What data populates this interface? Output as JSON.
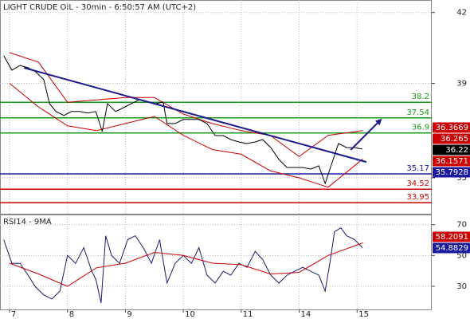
{
  "chart_data": [
    {
      "type": "line",
      "title": "LIGHT CRUDE OIL - 30min - 6:50:57 AM (UTC+2)",
      "xlim": [
        -0.165,
        7.29
      ],
      "ylim": [
        33.48,
        42.53
      ],
      "yticks": [
        35,
        39,
        42
      ],
      "xticks": [
        {
          "value": 0,
          "label": "7"
        },
        {
          "value": 1,
          "label": "8"
        },
        {
          "value": 2,
          "label": "9"
        },
        {
          "value": 3,
          "label": "10"
        },
        {
          "value": 4,
          "label": "11"
        },
        {
          "value": 5,
          "label": "14"
        },
        {
          "value": 6,
          "label": "15"
        }
      ],
      "grid": true,
      "series": [
        {
          "color": "#cc0000",
          "x": [
            0,
            0.5,
            1,
            1.5,
            2,
            2.5,
            3,
            3.5,
            4,
            4.5,
            5,
            5.5,
            6.1
          ],
          "values": [
            40.3,
            39.9,
            38.2,
            38.3,
            38.4,
            38.4,
            37.7,
            37.3,
            37.0,
            36.8,
            35.9,
            36.8,
            37.0
          ]
        },
        {
          "color": "#cc0000",
          "x": [
            0,
            0.5,
            1,
            1.5,
            2,
            2.5,
            3,
            3.5,
            4,
            4.5,
            5,
            5.5,
            6.1
          ],
          "values": [
            39.0,
            38.0,
            37.2,
            37.0,
            37.3,
            37.6,
            36.8,
            36.2,
            36.0,
            35.3,
            35.0,
            34.6,
            35.8
          ]
        },
        {
          "color": "#000000",
          "x": [
            -0.1,
            0.04,
            0.18,
            0.32,
            0.45,
            0.59,
            0.69,
            0.8,
            0.94,
            1.07,
            1.21,
            1.35,
            1.49,
            1.6,
            1.69,
            1.83,
            1.97,
            2.1,
            2.24,
            2.38,
            2.52,
            2.65,
            2.72,
            2.86,
            3.0,
            3.14,
            3.27,
            3.41,
            3.55,
            3.69,
            3.82,
            3.96,
            4.1,
            4.24,
            4.37,
            4.51,
            4.65,
            4.79,
            4.92,
            5.06,
            5.2,
            5.34,
            5.45,
            5.54,
            5.61,
            5.68,
            5.82,
            5.96,
            6.09
          ],
          "values": [
            40.17,
            39.56,
            39.76,
            39.66,
            39.49,
            39.16,
            38.14,
            37.81,
            37.64,
            37.81,
            37.81,
            37.74,
            37.81,
            36.96,
            38.14,
            37.81,
            37.97,
            38.14,
            38.31,
            38.21,
            38.14,
            38.21,
            37.3,
            37.3,
            37.47,
            37.47,
            37.47,
            37.3,
            36.79,
            36.79,
            36.62,
            36.52,
            36.45,
            36.52,
            36.62,
            36.28,
            35.78,
            35.44,
            35.44,
            35.44,
            35.37,
            35.51,
            34.76,
            35.44,
            35.95,
            36.45,
            36.28,
            36.28,
            36.22
          ]
        }
      ],
      "trendlines": [
        {
          "color": "#1a1a8c",
          "x": [
            0.25,
            6.16
          ],
          "values": [
            39.66,
            35.67
          ],
          "arrow": false
        },
        {
          "color": "#1a1a8c",
          "x": [
            5.89,
            6.41
          ],
          "values": [
            36.18,
            37.46
          ],
          "arrow": true
        }
      ],
      "levels": [
        {
          "value": 38.2,
          "color": "#1a9a1a"
        },
        {
          "value": 37.54,
          "color": "#1a9a1a"
        },
        {
          "value": 36.9,
          "color": "#1a9a1a"
        },
        {
          "value": 35.17,
          "color": "#1a1aa0"
        },
        {
          "value": 34.52,
          "color": "#cc0000"
        },
        {
          "value": 33.95,
          "color": "#cc0000"
        }
      ],
      "markers": [
        {
          "value": 36.3669,
          "color": "#cc0000"
        },
        {
          "value": 36.265,
          "color": "#cc0000"
        },
        {
          "value": 36.22,
          "color": "#000000"
        },
        {
          "value": 36.1571,
          "color": "#cc0000"
        },
        {
          "value": 35.7928,
          "color": "#1a1aa0"
        }
      ]
    },
    {
      "type": "line",
      "title": "RSI14 - 9MA",
      "xlim": [
        -0.165,
        7.29
      ],
      "ylim": [
        15,
        75
      ],
      "yticks": [
        30,
        50,
        70
      ],
      "xticks": [
        {
          "value": 0,
          "label": "7"
        },
        {
          "value": 1,
          "label": "8"
        },
        {
          "value": 2,
          "label": "9"
        },
        {
          "value": 3,
          "label": "10"
        },
        {
          "value": 4,
          "label": "11"
        },
        {
          "value": 5,
          "label": "14"
        },
        {
          "value": 6,
          "label": "15"
        }
      ],
      "grid": true,
      "series": [
        {
          "color": "#1a1a6e",
          "x": [
            -0.1,
            0.04,
            0.18,
            0.32,
            0.45,
            0.59,
            0.73,
            0.87,
            1.0,
            1.14,
            1.28,
            1.42,
            1.49,
            1.58,
            1.66,
            1.76,
            1.9,
            2.04,
            2.17,
            2.31,
            2.45,
            2.59,
            2.72,
            2.86,
            3.0,
            3.14,
            3.27,
            3.41,
            3.55,
            3.69,
            3.82,
            3.96,
            4.1,
            4.24,
            4.37,
            4.51,
            4.65,
            4.79,
            4.92,
            5.06,
            5.2,
            5.34,
            5.45,
            5.54,
            5.61,
            5.72,
            5.82,
            5.96,
            6.09
          ],
          "values": [
            60.26,
            44.9,
            44.9,
            37.2,
            29.5,
            24.4,
            21.8,
            26.9,
            50.0,
            44.9,
            55.1,
            39.7,
            34.6,
            19.2,
            62.8,
            50.0,
            44.9,
            60.26,
            62.8,
            55.1,
            44.9,
            60.26,
            32.1,
            44.9,
            50.0,
            44.9,
            55.1,
            37.2,
            32.1,
            39.7,
            37.2,
            44.9,
            42.3,
            52.6,
            47.4,
            37.2,
            32.1,
            37.2,
            39.7,
            42.3,
            39.7,
            37.2,
            26.9,
            47.4,
            65.4,
            67.9,
            62.8,
            60.26,
            55.1
          ]
        },
        {
          "color": "#cc0000",
          "x": [
            0,
            0.5,
            1,
            1.5,
            2,
            2.5,
            3,
            3.5,
            4,
            4.5,
            5,
            5.5,
            6.1
          ],
          "values": [
            45,
            38,
            30,
            42,
            45,
            52,
            50,
            45,
            44,
            38,
            39,
            50,
            58.2
          ]
        }
      ],
      "markers": [
        {
          "value": 58.2091,
          "color": "#cc0000"
        },
        {
          "value": 54.8829,
          "color": "#1a1aa0"
        }
      ]
    }
  ]
}
